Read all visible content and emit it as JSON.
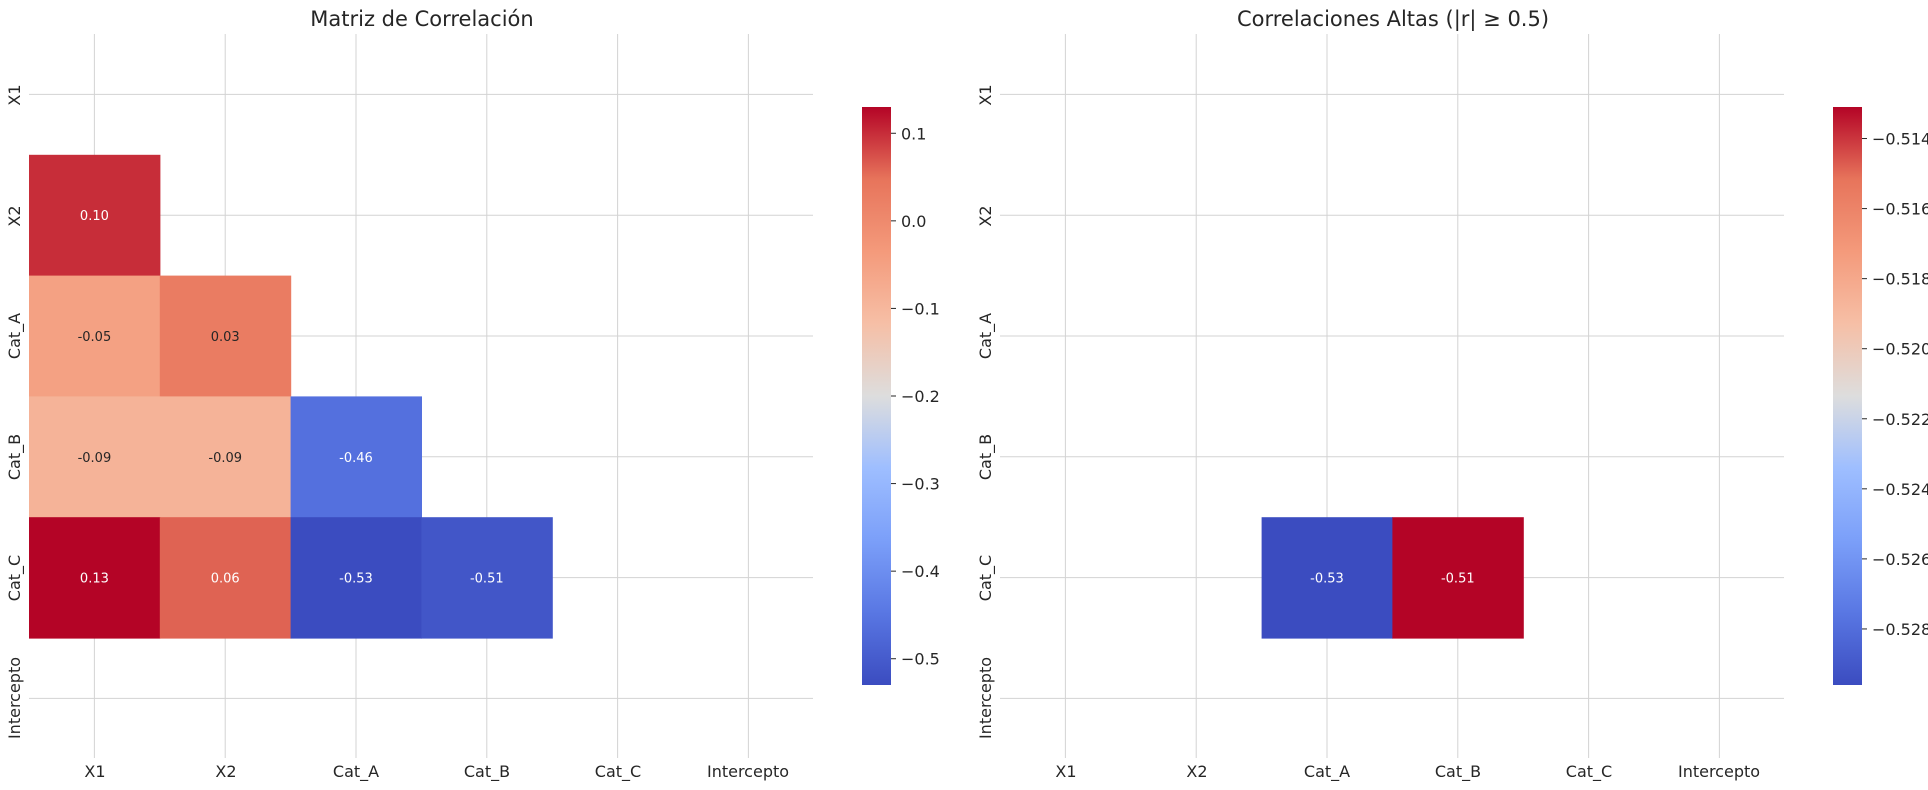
{
  "chart_data": [
    {
      "type": "heatmap",
      "title": "Matriz de Correlación",
      "rows": [
        "X1",
        "X2",
        "Cat_A",
        "Cat_B",
        "Cat_C",
        "Intercepto"
      ],
      "cols": [
        "X1",
        "X2",
        "Cat_A",
        "Cat_B",
        "Cat_C",
        "Intercepto"
      ],
      "values": [
        [
          null,
          null,
          null,
          null,
          null,
          null
        ],
        [
          0.1,
          null,
          null,
          null,
          null,
          null
        ],
        [
          -0.05,
          0.03,
          null,
          null,
          null,
          null
        ],
        [
          -0.09,
          -0.09,
          -0.46,
          null,
          null,
          null
        ],
        [
          0.13,
          0.06,
          -0.53,
          -0.51,
          null,
          null
        ],
        [
          null,
          null,
          null,
          null,
          null,
          null
        ]
      ],
      "labels": [
        [
          null,
          null,
          null,
          null,
          null,
          null
        ],
        [
          "0.10",
          null,
          null,
          null,
          null,
          null
        ],
        [
          "-0.05",
          "0.03",
          null,
          null,
          null,
          null
        ],
        [
          "-0.09",
          "-0.09",
          "-0.46",
          null,
          null,
          null
        ],
        [
          "0.13",
          "0.06",
          "-0.53",
          "-0.51",
          null,
          null
        ],
        [
          null,
          null,
          null,
          null,
          null,
          null
        ]
      ],
      "vmin": -0.53,
      "vmax": 0.13,
      "colormap": "coolwarm",
      "colorbar_ticks": [
        0.1,
        0.0,
        -0.1,
        -0.2,
        -0.3,
        -0.4,
        -0.5
      ],
      "colorbar_tick_labels": [
        "0.1",
        "0.0",
        "−0.1",
        "−0.2",
        "−0.3",
        "−0.4",
        "−0.5"
      ],
      "grid": true
    },
    {
      "type": "heatmap",
      "title": "Correlaciones Altas (|r| ≥ 0.5)",
      "rows": [
        "X1",
        "X2",
        "Cat_A",
        "Cat_B",
        "Cat_C",
        "Intercepto"
      ],
      "cols": [
        "X1",
        "X2",
        "Cat_A",
        "Cat_B",
        "Cat_C",
        "Intercepto"
      ],
      "values": [
        [
          null,
          null,
          null,
          null,
          null,
          null
        ],
        [
          null,
          null,
          null,
          null,
          null,
          null
        ],
        [
          null,
          null,
          null,
          null,
          null,
          null
        ],
        [
          null,
          null,
          null,
          null,
          null,
          null
        ],
        [
          null,
          null,
          -0.53,
          -0.51,
          null,
          null
        ],
        [
          null,
          null,
          null,
          null,
          null,
          null
        ]
      ],
      "labels": [
        [
          null,
          null,
          null,
          null,
          null,
          null
        ],
        [
          null,
          null,
          null,
          null,
          null,
          null
        ],
        [
          null,
          null,
          null,
          null,
          null,
          null
        ],
        [
          null,
          null,
          null,
          null,
          null,
          null
        ],
        [
          null,
          null,
          "-0.53",
          "-0.51",
          null,
          null
        ],
        [
          null,
          null,
          null,
          null,
          null,
          null
        ]
      ],
      "vmin": -0.5296,
      "vmax": -0.5131,
      "colormap": "coolwarm",
      "colorbar_ticks": [
        -0.514,
        -0.516,
        -0.518,
        -0.52,
        -0.522,
        -0.524,
        -0.526,
        -0.528
      ],
      "colorbar_tick_labels": [
        "−0.514",
        "−0.516",
        "−0.518",
        "−0.520",
        "−0.522",
        "−0.524",
        "−0.526",
        "−0.528"
      ],
      "grid": true
    }
  ]
}
